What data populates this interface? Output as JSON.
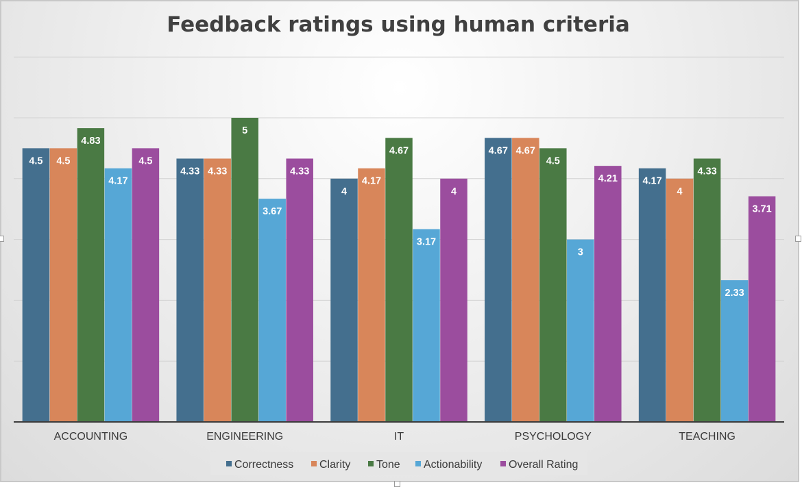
{
  "chart_data": {
    "type": "bar",
    "title": "Feedback ratings using human criteria",
    "categories": [
      "ACCOUNTING",
      "ENGINEERING",
      "IT",
      "PSYCHOLOGY",
      "TEACHING"
    ],
    "series": [
      {
        "name": "Correctness",
        "color": "#446f8e",
        "values": [
          4.5,
          4.33,
          4,
          4.67,
          4.17
        ],
        "labels": [
          "4.5",
          "4.33",
          "4",
          "4.67",
          "4.17"
        ]
      },
      {
        "name": "Clarity",
        "color": "#d8865a",
        "values": [
          4.5,
          4.33,
          4.17,
          4.67,
          4
        ],
        "labels": [
          "4.5",
          "4.33",
          "4.17",
          "4.67",
          "4"
        ]
      },
      {
        "name": "Tone",
        "color": "#4a7a44",
        "values": [
          4.83,
          5,
          4.67,
          4.5,
          4.33
        ],
        "labels": [
          "4.83",
          "5",
          "4.67",
          "4.5",
          "4.33"
        ]
      },
      {
        "name": "Actionability",
        "color": "#56a7d6",
        "values": [
          4.17,
          3.67,
          3.17,
          3,
          2.33
        ],
        "labels": [
          "4.17",
          "3.67",
          "3.17",
          "3",
          "2.33"
        ]
      },
      {
        "name": "Overall Rating",
        "color": "#9b4d9e",
        "values": [
          4.5,
          4.33,
          4,
          4.21,
          3.71
        ],
        "labels": [
          "4.5",
          "4.33",
          "4",
          "4.21",
          "3.71"
        ]
      }
    ],
    "ylim": [
      0,
      6
    ],
    "grid": true,
    "legend_position": "bottom-center"
  }
}
